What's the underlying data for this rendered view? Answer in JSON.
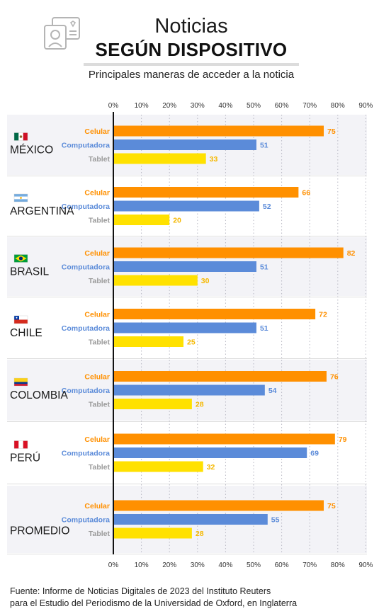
{
  "header": {
    "title_line1": "Noticias",
    "title_line2": "SEGÚN DISPOSITIVO",
    "subtitle": "Principales maneras de acceder a la noticia",
    "icon": "device-news-icon"
  },
  "footer": {
    "line1": "Fuente: Informe de Noticias Digitales de 2023 del Instituto Reuters",
    "line2": "para el Estudio del Periodismo de la Universidad de Oxford, en Inglaterra"
  },
  "colors": {
    "celular": "#FF9000",
    "computadora": "#5B8BD9",
    "tablet": "#FFE100",
    "tablet_label": "#9a9a9a",
    "band": "#F3F3F7",
    "grid": "#b9b9c4"
  },
  "chart_data": {
    "type": "bar",
    "orientation": "horizontal",
    "xlim": [
      0,
      90
    ],
    "x_ticks": [
      "0%",
      "10%",
      "20%",
      "30%",
      "40%",
      "50%",
      "60%",
      "70%",
      "80%",
      "90%"
    ],
    "series_names": [
      "Celular",
      "Computadora",
      "Tablet"
    ],
    "grid": "dotted vertical",
    "groups": [
      {
        "country": "MÉXICO",
        "flag": "mexico-flag-icon",
        "values": [
          75,
          51,
          33
        ]
      },
      {
        "country": "ARGENTINA",
        "flag": "argentina-flag-icon",
        "values": [
          66,
          52,
          20
        ]
      },
      {
        "country": "BRASIL",
        "flag": "brazil-flag-icon",
        "values": [
          82,
          51,
          30
        ]
      },
      {
        "country": "CHILE",
        "flag": "chile-flag-icon",
        "values": [
          72,
          51,
          25
        ]
      },
      {
        "country": "COLOMBIA",
        "flag": "colombia-flag-icon",
        "values": [
          76,
          54,
          28
        ]
      },
      {
        "country": "PERÚ",
        "flag": "peru-flag-icon",
        "values": [
          79,
          69,
          32
        ]
      },
      {
        "country": "PROMEDIO",
        "flag": "",
        "values": [
          75,
          55,
          28
        ]
      }
    ]
  }
}
